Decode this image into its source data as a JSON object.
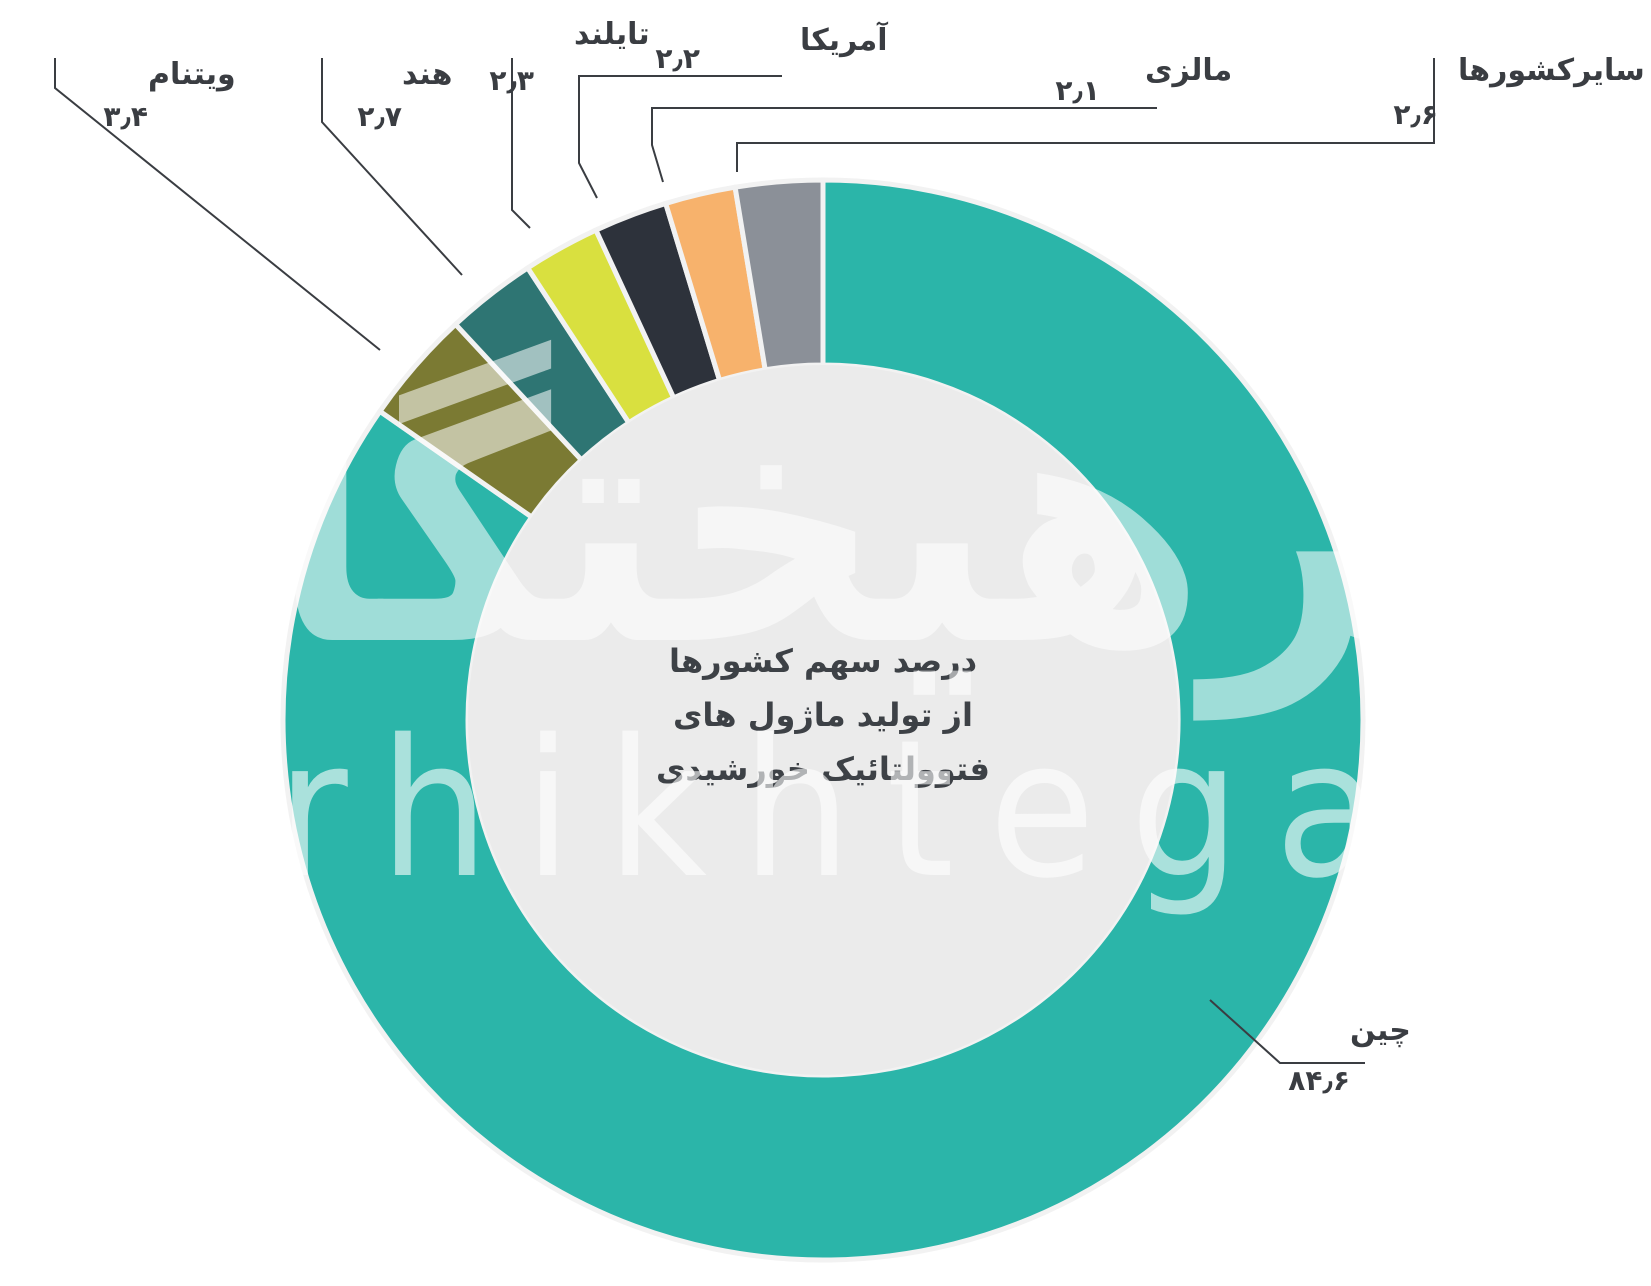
{
  "chart_data": {
    "type": "donut",
    "center_title_lines": [
      "درصد سهم کشورها",
      "از تولید ماژول های",
      "فتوولتائیک خورشیدی"
    ],
    "slices": [
      {
        "label": "چین",
        "value": 84.6,
        "value_text": "۸۴٫۶",
        "color": "#2bb5a9"
      },
      {
        "label": "ویتنام",
        "value": 3.4,
        "value_text": "۳٫۴",
        "color": "#7b7a33"
      },
      {
        "label": "هند",
        "value": 2.7,
        "value_text": "۲٫۷",
        "color": "#2e7573"
      },
      {
        "label": "تایلند",
        "value": 2.3,
        "value_text": "۲٫۳",
        "color": "#d9e03f"
      },
      {
        "label": "آمریکا",
        "value": 2.2,
        "value_text": "۲٫۲",
        "color": "#2d323b"
      },
      {
        "label": "مالزی",
        "value": 2.1,
        "value_text": "۲٫۱",
        "color": "#f7b26c"
      },
      {
        "label": "سایرکشورها",
        "value": 2.6,
        "value_text": "۲٫۶",
        "color": "#8b9098"
      }
    ]
  },
  "watermark": {
    "persian": "فرهیختگان",
    "latin": "farhikhtegan"
  }
}
